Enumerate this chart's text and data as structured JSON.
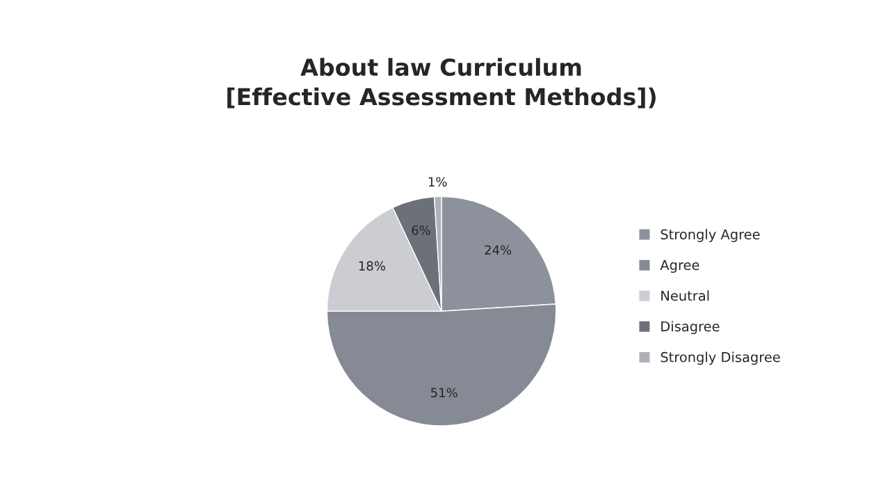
{
  "chart_data": {
    "type": "pie",
    "title": "About law Curriculum\n[Effective Assessment Methods])",
    "categories": [
      "Strongly Agree",
      "Agree",
      "Neutral",
      "Disagree",
      "Strongly Disagree"
    ],
    "values": [
      24,
      51,
      18,
      6,
      1
    ],
    "value_labels": [
      "24%",
      "51%",
      "18%",
      "6%",
      "1%"
    ],
    "colors": [
      "#8c919b",
      "#858a94",
      "#cbcdd2",
      "#6c7079",
      "#aeb1b8"
    ],
    "legend": "right"
  }
}
